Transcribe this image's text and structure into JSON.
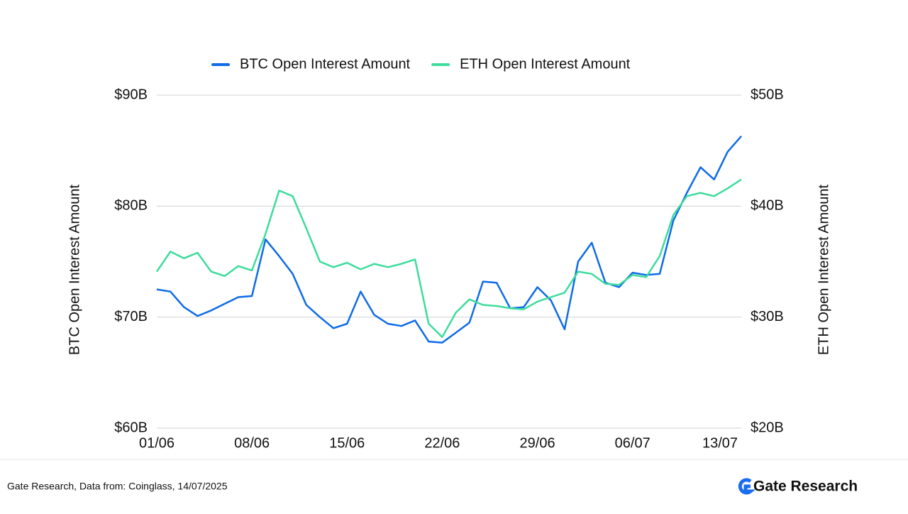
{
  "chart_data": {
    "type": "line",
    "categories": [
      "01/06",
      null,
      null,
      null,
      null,
      null,
      null,
      "08/06",
      null,
      null,
      null,
      null,
      null,
      null,
      "15/06",
      null,
      null,
      null,
      null,
      null,
      null,
      "22/06",
      null,
      null,
      null,
      null,
      null,
      null,
      "29/06",
      null,
      null,
      null,
      null,
      null,
      null,
      "06/07",
      null,
      null,
      null,
      null,
      null,
      null,
      "13/07",
      null
    ],
    "series": [
      {
        "name": "BTC Open Interest Amount",
        "color": "#0d6be8",
        "axis": "y",
        "values": [
          72.5,
          72.3,
          70.9,
          70.1,
          70.6,
          71.2,
          71.8,
          71.9,
          77.0,
          75.5,
          73.9,
          71.1,
          70.0,
          69.0,
          69.4,
          72.3,
          70.2,
          69.4,
          69.2,
          69.7,
          67.8,
          67.7,
          68.6,
          69.5,
          73.2,
          73.1,
          70.8,
          70.9,
          72.7,
          71.5,
          68.9,
          75.0,
          76.7,
          73.1,
          72.7,
          74.0,
          73.8,
          73.9,
          78.7,
          81.2,
          83.5,
          82.4,
          84.9,
          86.3
        ]
      },
      {
        "name": "ETH Open Interest Amount",
        "color": "#3ddc9c",
        "axis": "y2",
        "values": [
          34.1,
          35.9,
          35.3,
          35.8,
          34.1,
          33.7,
          34.6,
          34.2,
          37.5,
          41.4,
          40.9,
          38.0,
          35.0,
          34.5,
          34.9,
          34.3,
          34.8,
          34.5,
          34.8,
          35.2,
          29.4,
          28.2,
          30.4,
          31.6,
          31.1,
          31.0,
          30.8,
          30.7,
          31.4,
          31.8,
          32.2,
          34.1,
          33.9,
          33.0,
          32.9,
          33.8,
          33.6,
          35.5,
          39.2,
          40.9,
          41.2,
          40.9,
          41.6,
          42.4
        ]
      }
    ],
    "y_label": "BTC Open Interest Amount",
    "y2_label": "ETH Open Interest Amount",
    "ylim": [
      60,
      90
    ],
    "yticks": [
      {
        "value": 60,
        "label": "$60B"
      },
      {
        "value": 70,
        "label": "$70B"
      },
      {
        "value": 80,
        "label": "$80B"
      },
      {
        "value": 90,
        "label": "$90B"
      }
    ],
    "y2lim": [
      20,
      50
    ],
    "y2ticks": [
      {
        "value": 20,
        "label": "$20B"
      },
      {
        "value": 30,
        "label": "$30B"
      },
      {
        "value": 40,
        "label": "$40B"
      },
      {
        "value": 50,
        "label": "$50B"
      }
    ],
    "grid": true,
    "legend": "top"
  },
  "footer": {
    "source": "Gate Research, Data from: Coinglass, 14/07/2025",
    "logo": "Gate Research"
  }
}
